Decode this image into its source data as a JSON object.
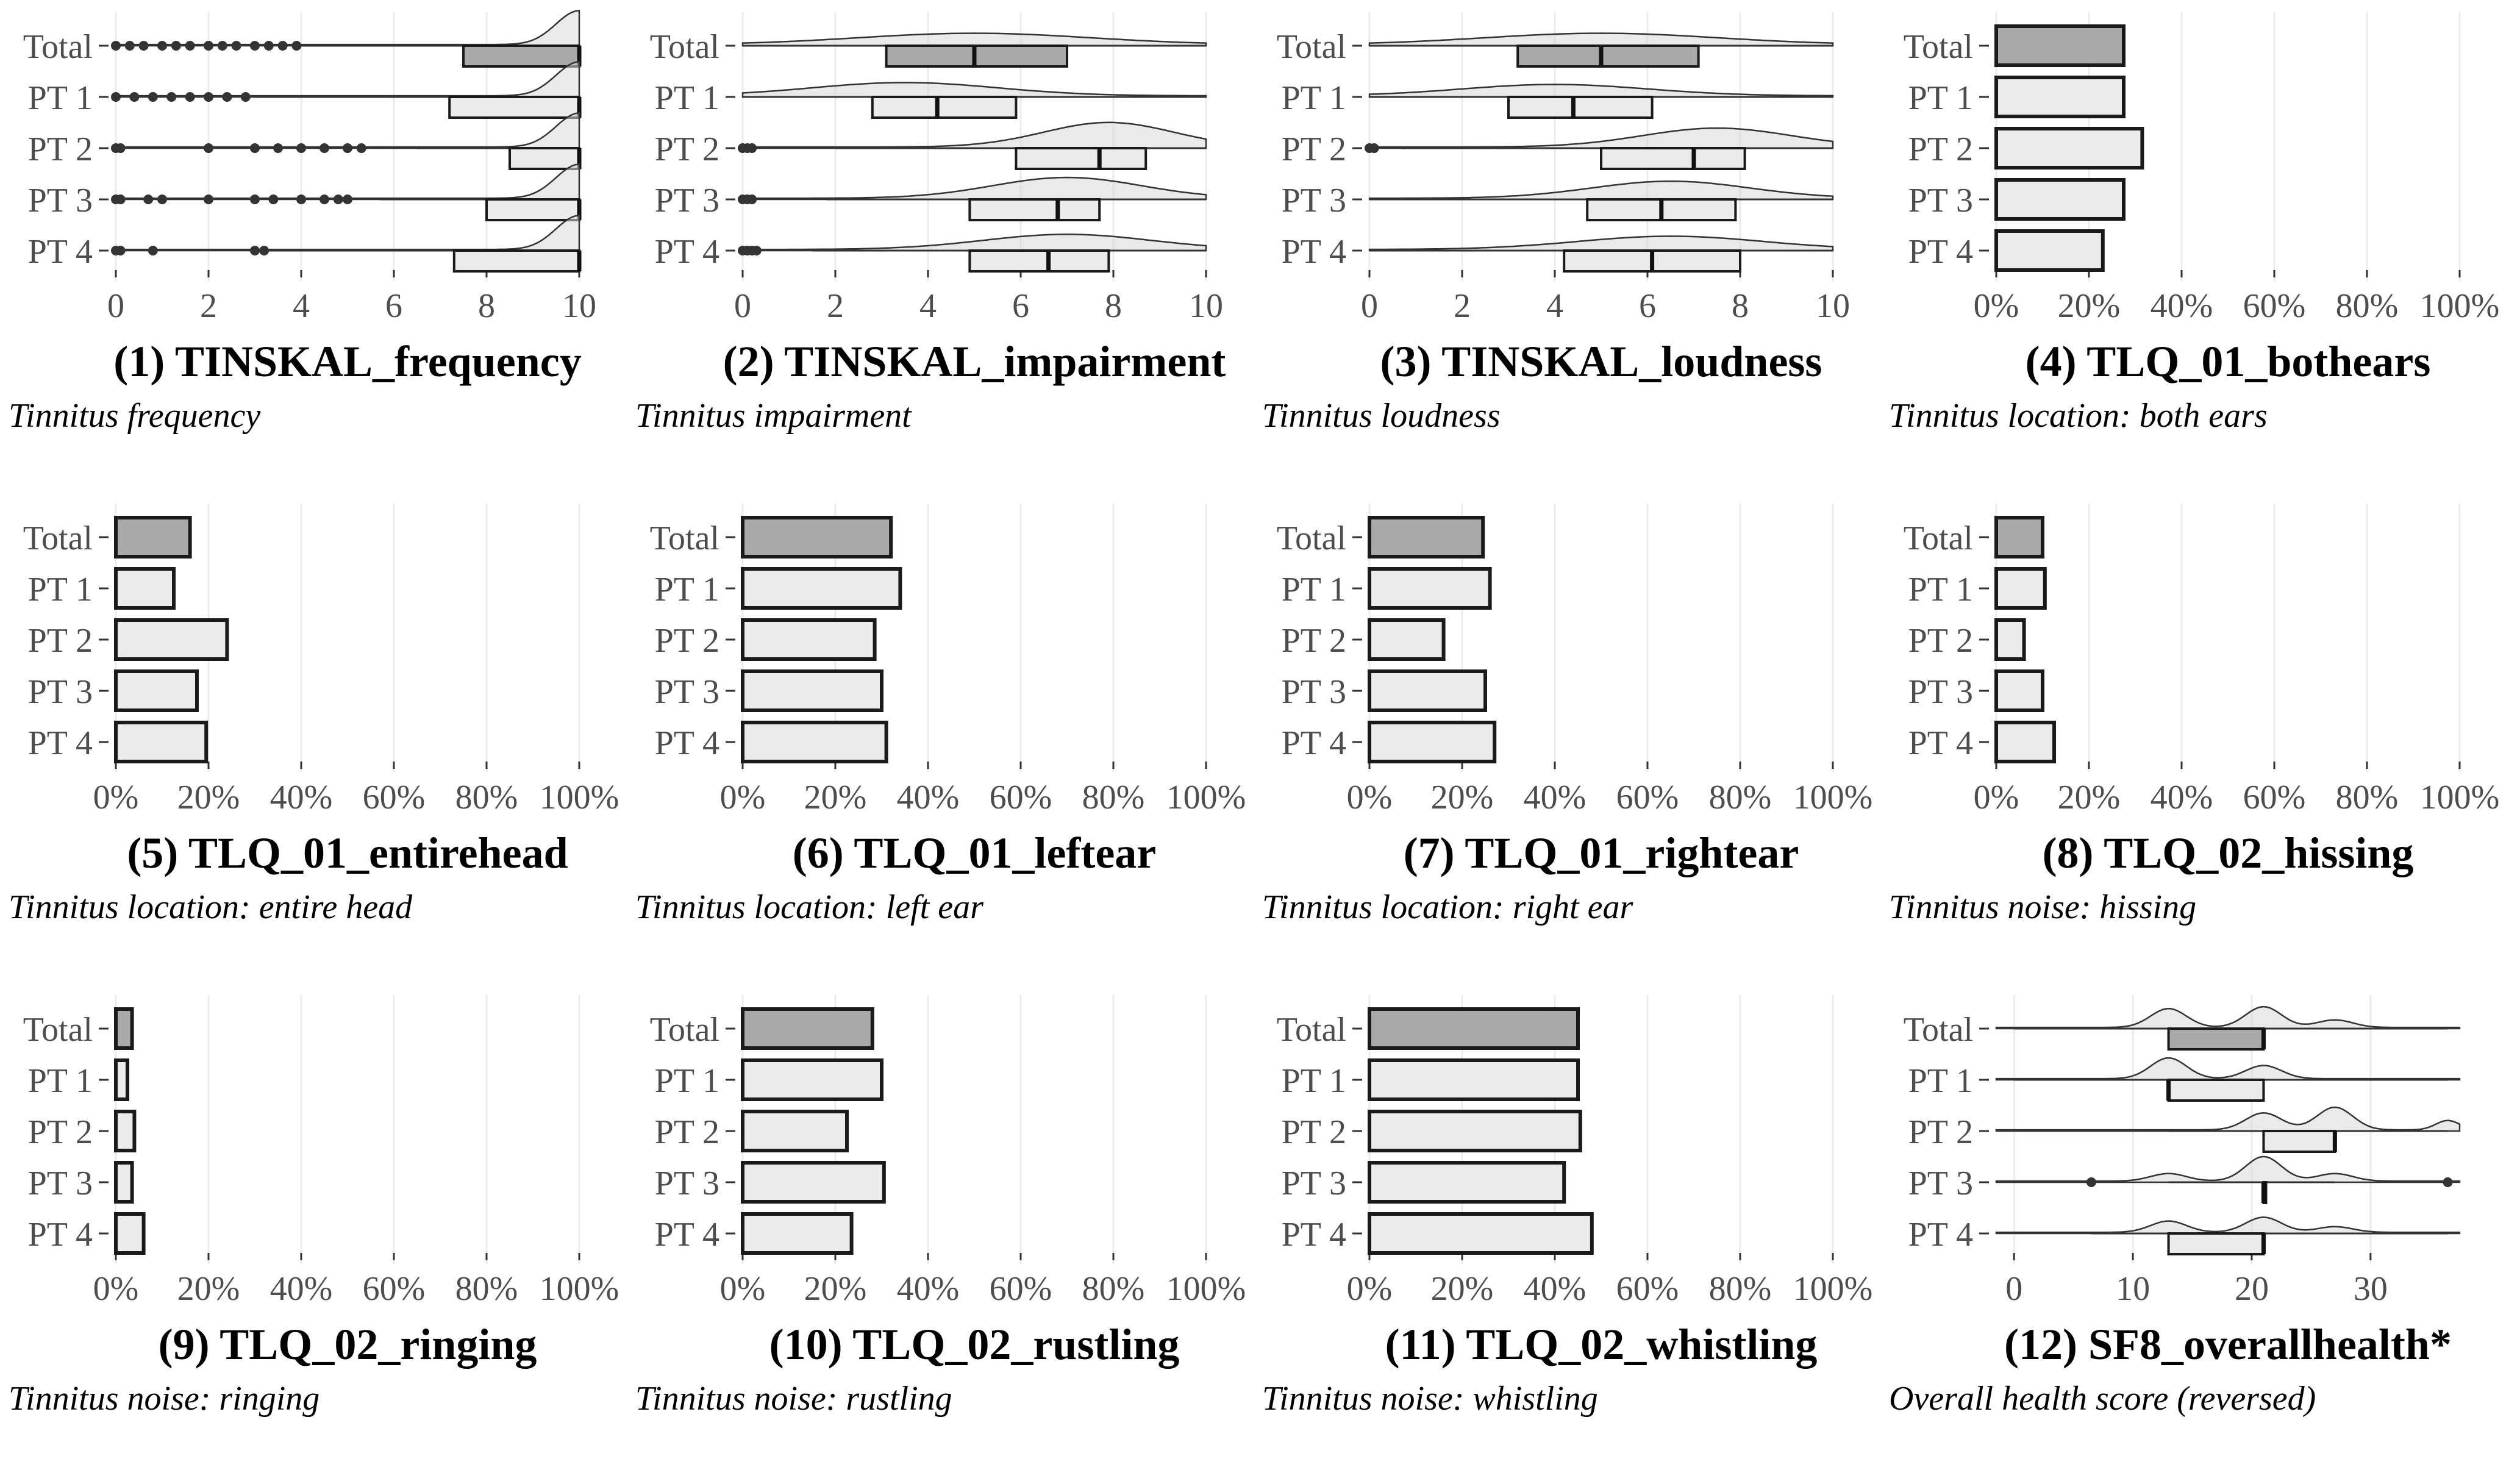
{
  "groups": [
    "Total",
    "PT 1",
    "PT 2",
    "PT 3",
    "PT 4"
  ],
  "colors": {
    "total_fill": "#a9a9a9",
    "group_fill": "#ebebeb",
    "stroke": "#1a1a1a",
    "density_fill": "#d9d9d9",
    "grid": "#ebebeb",
    "tick_text": "#4d4d4d"
  },
  "chart_data": [
    {
      "type": "raincloud",
      "title": "(1) TINSKAL_frequency",
      "subtitle": "Tinnitus frequency",
      "xlim": [
        0,
        10
      ],
      "xticks": [
        0,
        2,
        4,
        6,
        8,
        10
      ],
      "boxes": [
        {
          "group": "Total",
          "q1": 7.5,
          "median": 10,
          "q3": 10,
          "whisker_low": 4,
          "whisker_high": 10,
          "outliers": [
            0,
            0.3,
            0.6,
            1,
            1.3,
            1.6,
            2,
            2.3,
            2.6,
            3,
            3.3,
            3.6,
            3.9
          ]
        },
        {
          "group": "PT 1",
          "q1": 7.2,
          "median": 10,
          "q3": 10,
          "whisker_low": 3,
          "whisker_high": 10,
          "outliers": [
            0,
            0.4,
            0.8,
            1.2,
            1.6,
            2,
            2.4,
            2.8
          ]
        },
        {
          "group": "PT 2",
          "q1": 8.5,
          "median": 10,
          "q3": 10,
          "whisker_low": 6.5,
          "whisker_high": 10,
          "outliers": [
            0,
            0.1,
            2,
            3,
            3.5,
            4,
            4.5,
            5,
            5.3
          ]
        },
        {
          "group": "PT 3",
          "q1": 8,
          "median": 10,
          "q3": 10,
          "whisker_low": 5.7,
          "whisker_high": 10,
          "outliers": [
            0,
            0.1,
            0.7,
            1,
            2,
            3,
            3.4,
            4,
            4.5,
            4.8,
            5
          ]
        },
        {
          "group": "PT 4",
          "q1": 7.3,
          "median": 10,
          "q3": 10,
          "whisker_low": 3.3,
          "whisker_high": 10,
          "outliers": [
            0,
            0.1,
            0.8,
            3,
            3.2
          ]
        }
      ],
      "densities": [
        {
          "group": "Total",
          "peaks": [
            {
              "at": 10,
              "height": 0.9,
              "width": 0.5
            }
          ]
        },
        {
          "group": "PT 1",
          "peaks": [
            {
              "at": 10,
              "height": 0.9,
              "width": 0.5
            }
          ]
        },
        {
          "group": "PT 2",
          "peaks": [
            {
              "at": 10,
              "height": 0.9,
              "width": 0.5
            }
          ]
        },
        {
          "group": "PT 3",
          "peaks": [
            {
              "at": 10,
              "height": 0.9,
              "width": 0.5
            }
          ]
        },
        {
          "group": "PT 4",
          "peaks": [
            {
              "at": 10,
              "height": 0.9,
              "width": 0.5
            }
          ]
        }
      ]
    },
    {
      "type": "raincloud",
      "title": "(2) TINSKAL_impairment",
      "subtitle": "Tinnitus impairment",
      "xlim": [
        0,
        10
      ],
      "xticks": [
        0,
        2,
        4,
        6,
        8,
        10
      ],
      "boxes": [
        {
          "group": "Total",
          "q1": 3.1,
          "median": 5,
          "q3": 7,
          "whisker_low": 0,
          "whisker_high": 10,
          "outliers": []
        },
        {
          "group": "PT 1",
          "q1": 2.8,
          "median": 4.2,
          "q3": 5.9,
          "whisker_low": 0,
          "whisker_high": 10,
          "outliers": []
        },
        {
          "group": "PT 2",
          "q1": 5.9,
          "median": 7.7,
          "q3": 8.7,
          "whisker_low": 2,
          "whisker_high": 10,
          "outliers": [
            0,
            0.1,
            0.2
          ]
        },
        {
          "group": "PT 3",
          "q1": 4.9,
          "median": 6.8,
          "q3": 7.7,
          "whisker_low": 1.8,
          "whisker_high": 10,
          "outliers": [
            0,
            0.1,
            0.2
          ]
        },
        {
          "group": "PT 4",
          "q1": 4.9,
          "median": 6.6,
          "q3": 7.9,
          "whisker_low": 1.5,
          "whisker_high": 10,
          "outliers": [
            0,
            0.1,
            0.2,
            0.3
          ]
        }
      ],
      "densities": [
        {
          "group": "Total",
          "peaks": [
            {
              "at": 5,
              "height": 0.3,
              "width": 2.5
            }
          ]
        },
        {
          "group": "PT 1",
          "peaks": [
            {
              "at": 3.5,
              "height": 0.35,
              "width": 2
            }
          ]
        },
        {
          "group": "PT 2",
          "peaks": [
            {
              "at": 7.9,
              "height": 0.65,
              "width": 1.4
            }
          ]
        },
        {
          "group": "PT 3",
          "peaks": [
            {
              "at": 7,
              "height": 0.55,
              "width": 1.6
            }
          ]
        },
        {
          "group": "PT 4",
          "peaks": [
            {
              "at": 7,
              "height": 0.4,
              "width": 1.8
            }
          ]
        }
      ]
    },
    {
      "type": "raincloud",
      "title": "(3) TINSKAL_loudness",
      "subtitle": "Tinnitus loudness",
      "xlim": [
        0,
        10
      ],
      "xticks": [
        0,
        2,
        4,
        6,
        8,
        10
      ],
      "boxes": [
        {
          "group": "Total",
          "q1": 3.2,
          "median": 5,
          "q3": 7.1,
          "whisker_low": 0,
          "whisker_high": 10,
          "outliers": []
        },
        {
          "group": "PT 1",
          "q1": 3,
          "median": 4.4,
          "q3": 6.1,
          "whisker_low": 0,
          "whisker_high": 10,
          "outliers": []
        },
        {
          "group": "PT 2",
          "q1": 5,
          "median": 7,
          "q3": 8.1,
          "whisker_low": 0.7,
          "whisker_high": 10,
          "outliers": [
            0,
            0.1
          ]
        },
        {
          "group": "PT 3",
          "q1": 4.7,
          "median": 6.3,
          "q3": 7.9,
          "whisker_low": 0,
          "whisker_high": 10,
          "outliers": []
        },
        {
          "group": "PT 4",
          "q1": 4.2,
          "median": 6.1,
          "q3": 8,
          "whisker_low": 0,
          "whisker_high": 10,
          "outliers": []
        }
      ],
      "densities": [
        {
          "group": "Total",
          "peaks": [
            {
              "at": 5,
              "height": 0.3,
              "width": 2.5
            }
          ]
        },
        {
          "group": "PT 1",
          "peaks": [
            {
              "at": 4,
              "height": 0.3,
              "width": 2
            }
          ]
        },
        {
          "group": "PT 2",
          "peaks": [
            {
              "at": 7.5,
              "height": 0.5,
              "width": 1.6
            }
          ]
        },
        {
          "group": "PT 3",
          "peaks": [
            {
              "at": 6.5,
              "height": 0.45,
              "width": 1.7
            }
          ]
        },
        {
          "group": "PT 4",
          "peaks": [
            {
              "at": 6.5,
              "height": 0.35,
              "width": 2
            }
          ]
        }
      ]
    },
    {
      "type": "bar",
      "title": "(4) TLQ_01_bothears",
      "subtitle": "Tinnitus location: both ears",
      "xlim": [
        0,
        100
      ],
      "xticks": [
        "0%",
        "20%",
        "40%",
        "60%",
        "80%",
        "100%"
      ],
      "values": [
        27.5,
        27.5,
        31.5,
        27.5,
        23
      ]
    },
    {
      "type": "bar",
      "title": "(5) TLQ_01_entirehead",
      "subtitle": "Tinnitus location: entire head",
      "xlim": [
        0,
        100
      ],
      "xticks": [
        "0%",
        "20%",
        "40%",
        "60%",
        "80%",
        "100%"
      ],
      "values": [
        16,
        12.5,
        24,
        17.5,
        19.5
      ]
    },
    {
      "type": "bar",
      "title": "(6) TLQ_01_leftear",
      "subtitle": "Tinnitus location: left ear",
      "xlim": [
        0,
        100
      ],
      "xticks": [
        "0%",
        "20%",
        "40%",
        "60%",
        "80%",
        "100%"
      ],
      "values": [
        32,
        34,
        28.5,
        30,
        31
      ]
    },
    {
      "type": "bar",
      "title": "(7) TLQ_01_rightear",
      "subtitle": "Tinnitus location: right ear",
      "xlim": [
        0,
        100
      ],
      "xticks": [
        "0%",
        "20%",
        "40%",
        "60%",
        "80%",
        "100%"
      ],
      "values": [
        24.5,
        26,
        16,
        25,
        27
      ]
    },
    {
      "type": "bar",
      "title": "(8) TLQ_02_hissing",
      "subtitle": "Tinnitus noise: hissing",
      "xlim": [
        0,
        100
      ],
      "xticks": [
        "0%",
        "20%",
        "40%",
        "60%",
        "80%",
        "100%"
      ],
      "values": [
        10,
        10.5,
        6,
        10,
        12.5
      ]
    },
    {
      "type": "bar",
      "title": "(9) TLQ_02_ringing",
      "subtitle": "Tinnitus noise: ringing",
      "xlim": [
        0,
        100
      ],
      "xticks": [
        "0%",
        "20%",
        "40%",
        "60%",
        "80%",
        "100%"
      ],
      "values": [
        3.5,
        2.5,
        4,
        3.5,
        6
      ]
    },
    {
      "type": "bar",
      "title": "(10) TLQ_02_rustling",
      "subtitle": "Tinnitus noise: rustling",
      "xlim": [
        0,
        100
      ],
      "xticks": [
        "0%",
        "20%",
        "40%",
        "60%",
        "80%",
        "100%"
      ],
      "values": [
        28,
        30,
        22.5,
        30.5,
        23.5
      ]
    },
    {
      "type": "bar",
      "title": "(11) TLQ_02_whistling",
      "subtitle": "Tinnitus noise: whistling",
      "xlim": [
        0,
        100
      ],
      "xticks": [
        "0%",
        "20%",
        "40%",
        "60%",
        "80%",
        "100%"
      ],
      "values": [
        45,
        45,
        45.5,
        42,
        48
      ]
    },
    {
      "type": "raincloud",
      "title": "(12) SF8_overallhealth*",
      "subtitle": "Overall health score (reversed)",
      "xlim": [
        -1.5,
        37.5
      ],
      "xticks": [
        0,
        10,
        20,
        30
      ],
      "boxes": [
        {
          "group": "Total",
          "q1": 13,
          "median": 21,
          "q3": 21,
          "whisker_low": 0,
          "whisker_high": 36.5,
          "outliers": []
        },
        {
          "group": "PT 1",
          "q1": 13,
          "median": 13,
          "q3": 21,
          "whisker_low": 0,
          "whisker_high": 36.5,
          "outliers": []
        },
        {
          "group": "PT 2",
          "q1": 21,
          "median": 27,
          "q3": 27,
          "whisker_low": 13,
          "whisker_high": 36.5,
          "outliers": []
        },
        {
          "group": "PT 3",
          "q1": 21,
          "median": 21,
          "q3": 21,
          "whisker_low": 13,
          "whisker_high": 27,
          "outliers": [
            6.5,
            36.5
          ]
        },
        {
          "group": "PT 4",
          "q1": 13,
          "median": 21,
          "q3": 21,
          "whisker_low": 6.5,
          "whisker_high": 36.5,
          "outliers": []
        }
      ],
      "densities": [
        {
          "group": "Total",
          "peaks": [
            {
              "at": 13,
              "height": 0.5,
              "width": 1.5
            },
            {
              "at": 21,
              "height": 0.55,
              "width": 1.5
            },
            {
              "at": 27,
              "height": 0.2,
              "width": 1.5
            }
          ]
        },
        {
          "group": "PT 1",
          "peaks": [
            {
              "at": 13,
              "height": 0.55,
              "width": 1.5
            },
            {
              "at": 21,
              "height": 0.35,
              "width": 1.5
            }
          ]
        },
        {
          "group": "PT 2",
          "peaks": [
            {
              "at": 21,
              "height": 0.45,
              "width": 1.5
            },
            {
              "at": 27,
              "height": 0.6,
              "width": 1.5
            },
            {
              "at": 36.5,
              "height": 0.25,
              "width": 1
            }
          ]
        },
        {
          "group": "PT 3",
          "peaks": [
            {
              "at": 13,
              "height": 0.2,
              "width": 1.5
            },
            {
              "at": 21,
              "height": 0.65,
              "width": 1.5
            },
            {
              "at": 27,
              "height": 0.2,
              "width": 1.5
            }
          ]
        },
        {
          "group": "PT 4",
          "peaks": [
            {
              "at": 13,
              "height": 0.3,
              "width": 1.5
            },
            {
              "at": 21,
              "height": 0.4,
              "width": 1.5
            },
            {
              "at": 27,
              "height": 0.15,
              "width": 1.5
            }
          ]
        }
      ]
    }
  ]
}
